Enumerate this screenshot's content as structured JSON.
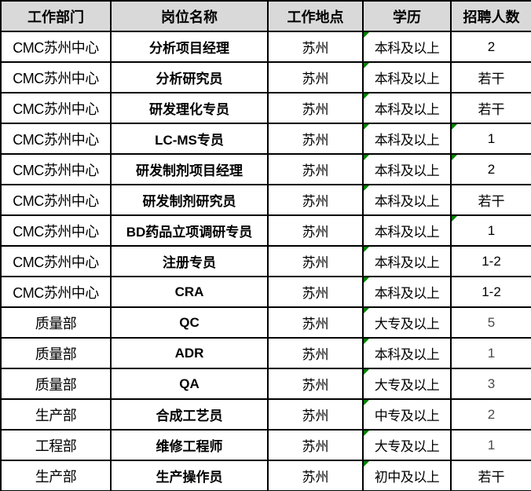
{
  "colors": {
    "header_bg": "#d9d9d9",
    "grid_border": "#000000",
    "error_indicator_green": "#008000"
  },
  "table": {
    "headers": [
      "工作部门",
      "岗位名称",
      "工作地点",
      "学历",
      "招聘人数"
    ],
    "rows": [
      {
        "department": "CMC苏州中心",
        "position": "分析项目经理",
        "location": "苏州",
        "education": "本科及以上",
        "count": "2",
        "education_flag": true,
        "count_flag": false,
        "count_light": false
      },
      {
        "department": "CMC苏州中心",
        "position": "分析研究员",
        "location": "苏州",
        "education": "本科及以上",
        "count": "若干",
        "education_flag": true,
        "count_flag": false,
        "count_light": false
      },
      {
        "department": "CMC苏州中心",
        "position": "研发理化专员",
        "location": "苏州",
        "education": "本科及以上",
        "count": "若干",
        "education_flag": true,
        "count_flag": false,
        "count_light": false
      },
      {
        "department": "CMC苏州中心",
        "position": "LC-MS专员",
        "location": "苏州",
        "education": "本科及以上",
        "count": "1",
        "education_flag": true,
        "count_flag": true,
        "count_light": false
      },
      {
        "department": "CMC苏州中心",
        "position": "研发制剂项目经理",
        "location": "苏州",
        "education": "本科及以上",
        "count": "2",
        "education_flag": true,
        "count_flag": true,
        "count_light": false
      },
      {
        "department": "CMC苏州中心",
        "position": "研发制剂研究员",
        "location": "苏州",
        "education": "本科及以上",
        "count": "若干",
        "education_flag": true,
        "count_flag": false,
        "count_light": false
      },
      {
        "department": "CMC苏州中心",
        "position": "BD药品立项调研专员",
        "location": "苏州",
        "education": "本科及以上",
        "count": "1",
        "education_flag": false,
        "count_flag": true,
        "count_light": false
      },
      {
        "department": "CMC苏州中心",
        "position": "注册专员",
        "location": "苏州",
        "education": "本科及以上",
        "count": "1-2",
        "education_flag": true,
        "count_flag": false,
        "count_light": false
      },
      {
        "department": "CMC苏州中心",
        "position": "CRA",
        "location": "苏州",
        "education": "本科及以上",
        "count": "1-2",
        "education_flag": true,
        "count_flag": false,
        "count_light": false
      },
      {
        "department": "质量部",
        "position": "QC",
        "location": "苏州",
        "education": "大专及以上",
        "count": "5",
        "education_flag": true,
        "count_flag": false,
        "count_light": true
      },
      {
        "department": "质量部",
        "position": "ADR",
        "location": "苏州",
        "education": "本科及以上",
        "count": "1",
        "education_flag": true,
        "count_flag": false,
        "count_light": true
      },
      {
        "department": "质量部",
        "position": "QA",
        "location": "苏州",
        "education": "大专及以上",
        "count": "3",
        "education_flag": true,
        "count_flag": false,
        "count_light": true
      },
      {
        "department": "生产部",
        "position": "合成工艺员",
        "location": "苏州",
        "education": "中专及以上",
        "count": "2",
        "education_flag": true,
        "count_flag": false,
        "count_light": true
      },
      {
        "department": "工程部",
        "position": "维修工程师",
        "location": "苏州",
        "education": "大专及以上",
        "count": "1",
        "education_flag": true,
        "count_flag": false,
        "count_light": true
      },
      {
        "department": "生产部",
        "position": "生产操作员",
        "location": "苏州",
        "education": "初中及以上",
        "count": "若干",
        "education_flag": true,
        "count_flag": false,
        "count_light": false
      }
    ]
  }
}
